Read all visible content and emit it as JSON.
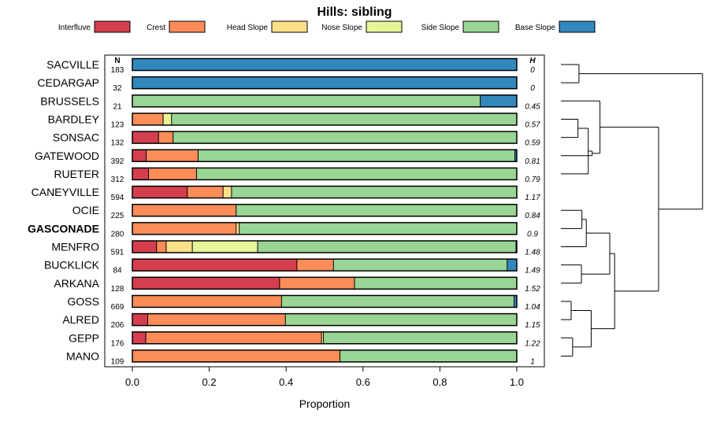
{
  "chart_data": {
    "type": "bar",
    "orientation": "horizontal-stacked",
    "title": "Hills: sibling",
    "xlabel": "Proportion",
    "ylabel": "",
    "xlim": [
      0,
      1
    ],
    "xticks": [
      "0.0",
      "0.2",
      "0.4",
      "0.6",
      "0.8",
      "1.0"
    ],
    "n_header": "N",
    "h_header": "H",
    "legend": [
      {
        "name": "Interfluve",
        "color": "#d53e4f"
      },
      {
        "name": "Crest",
        "color": "#fc8d59"
      },
      {
        "name": "Head Slope",
        "color": "#fee08b"
      },
      {
        "name": "Nose Slope",
        "color": "#e6f598"
      },
      {
        "name": "Side Slope",
        "color": "#99d594"
      },
      {
        "name": "Base Slope",
        "color": "#3288bd"
      }
    ],
    "rows": [
      {
        "name": "SACVILLE",
        "n": "183",
        "h": "0",
        "values": [
          0,
          0,
          0,
          0,
          0,
          1.0
        ]
      },
      {
        "name": "CEDARGAP",
        "n": "32",
        "h": "0",
        "values": [
          0,
          0,
          0,
          0,
          0,
          1.0
        ]
      },
      {
        "name": "BRUSSELS",
        "n": "21",
        "h": "0.45",
        "values": [
          0,
          0,
          0,
          0,
          0.905,
          0.095
        ]
      },
      {
        "name": "BARDLEY",
        "n": "123",
        "h": "0.57",
        "values": [
          0,
          0.08,
          0,
          0.022,
          0.898,
          0
        ]
      },
      {
        "name": "SONSAC",
        "n": "132",
        "h": "0.59",
        "values": [
          0.068,
          0.038,
          0,
          0,
          0.894,
          0
        ]
      },
      {
        "name": "GATEWOOD",
        "n": "392",
        "h": "0.81",
        "values": [
          0.036,
          0.135,
          0,
          0,
          0.824,
          0.005
        ]
      },
      {
        "name": "RUETER",
        "n": "312",
        "h": "0.79",
        "values": [
          0.042,
          0.125,
          0,
          0,
          0.833,
          0
        ]
      },
      {
        "name": "CANEYVILLE",
        "n": "594",
        "h": "1.17",
        "values": [
          0.143,
          0.093,
          0.022,
          0,
          0.742,
          0
        ]
      },
      {
        "name": "OCIE",
        "n": "225",
        "h": "0.84",
        "values": [
          0,
          0.27,
          0,
          0,
          0.73,
          0
        ]
      },
      {
        "name": "GASCONADE",
        "n": "280",
        "h": "0.9",
        "bold": true,
        "values": [
          0,
          0.27,
          0.008,
          0,
          0.722,
          0
        ]
      },
      {
        "name": "MENFRO",
        "n": "591",
        "h": "1.48",
        "values": [
          0.063,
          0.025,
          0.068,
          0.17,
          0.672,
          0.002
        ]
      },
      {
        "name": "BUCKLICK",
        "n": "84",
        "h": "1.49",
        "values": [
          0.428,
          0.095,
          0,
          0,
          0.452,
          0.025
        ]
      },
      {
        "name": "ARKANA",
        "n": "128",
        "h": "1.52",
        "values": [
          0.383,
          0.195,
          0,
          0,
          0.422,
          0
        ]
      },
      {
        "name": "GOSS",
        "n": "669",
        "h": "1.04",
        "values": [
          0,
          0.388,
          0,
          0,
          0.605,
          0.007
        ]
      },
      {
        "name": "ALRED",
        "n": "206",
        "h": "1.15",
        "values": [
          0.04,
          0.358,
          0,
          0,
          0.602,
          0
        ]
      },
      {
        "name": "GEPP",
        "n": "176",
        "h": "1.22",
        "values": [
          0.035,
          0.457,
          0.005,
          0,
          0.503,
          0
        ]
      },
      {
        "name": "MANO",
        "n": "109",
        "h": "1",
        "values": [
          0,
          0.54,
          0,
          0,
          0.46,
          0
        ]
      }
    ],
    "dendrogram_merges": [
      [
        0,
        1,
        0.37
      ],
      [
        3,
        4,
        0.35
      ],
      [
        -2,
        6,
        0.56
      ],
      [
        5,
        -3,
        0.64
      ],
      [
        2,
        -4,
        0.8
      ],
      [
        8,
        9,
        0.43
      ],
      [
        11,
        12,
        0.42
      ],
      [
        -6,
        10,
        0.52
      ],
      [
        -7,
        -8,
        1.0
      ],
      [
        13,
        14,
        0.21
      ],
      [
        15,
        16,
        0.24
      ],
      [
        -10,
        -11,
        0.62
      ],
      [
        -12,
        -9,
        1.1
      ],
      [
        -5,
        -13,
        2.0
      ],
      [
        -1,
        -14,
        2.9
      ]
    ]
  }
}
